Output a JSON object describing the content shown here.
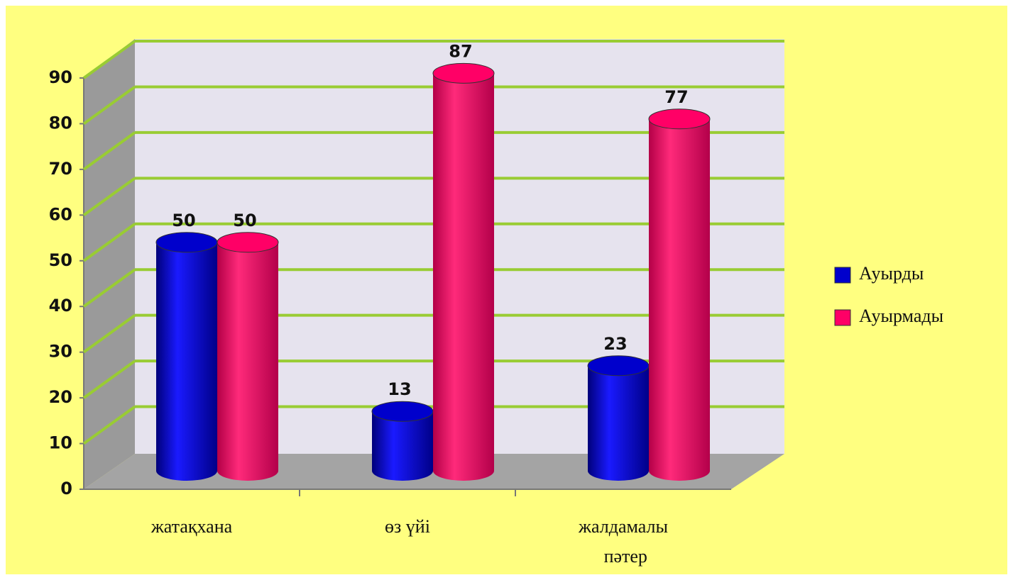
{
  "chart_data": {
    "type": "bar3d",
    "categories": [
      "жатақхана",
      "өз үйі",
      "жалдамалы пәтер"
    ],
    "series": [
      {
        "name": "Ауырды",
        "color": "#0000cc",
        "values": [
          50,
          13,
          23
        ]
      },
      {
        "name": "Ауырмады",
        "color": "#ff0066",
        "values": [
          50,
          87,
          77
        ]
      }
    ],
    "ylim": [
      0,
      90
    ],
    "yticks": [
      0,
      10,
      20,
      30,
      40,
      50,
      60,
      70,
      80,
      90
    ],
    "grid": true,
    "legend": "right"
  }
}
